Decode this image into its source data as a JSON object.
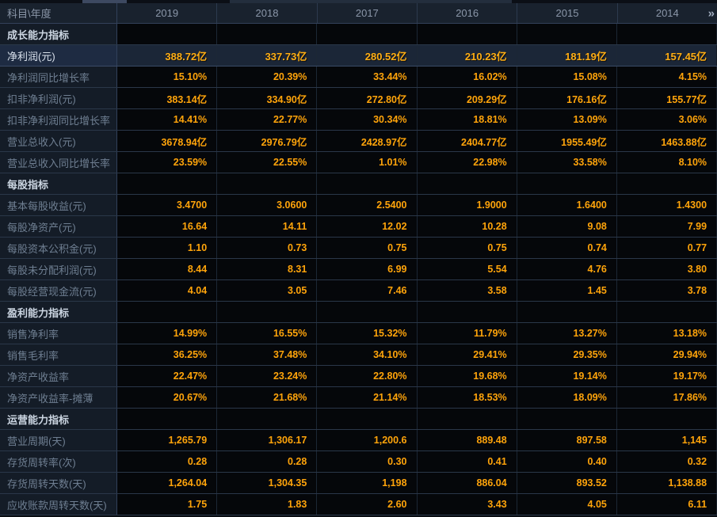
{
  "header": {
    "corner": "科目\\年度",
    "years": [
      "2019",
      "2018",
      "2017",
      "2016",
      "2015",
      "2014"
    ],
    "more_icon": "»"
  },
  "sections": [
    {
      "title": "成长能力指标",
      "rows": [
        {
          "label": "净利润(元)",
          "highlight": true,
          "values": [
            "388.72亿",
            "337.73亿",
            "280.52亿",
            "210.23亿",
            "181.19亿",
            "157.45亿"
          ]
        },
        {
          "label": "净利润同比增长率",
          "values": [
            "15.10%",
            "20.39%",
            "33.44%",
            "16.02%",
            "15.08%",
            "4.15%"
          ]
        },
        {
          "label": "扣非净利润(元)",
          "values": [
            "383.14亿",
            "334.90亿",
            "272.80亿",
            "209.29亿",
            "176.16亿",
            "155.77亿"
          ]
        },
        {
          "label": "扣非净利润同比增长率",
          "values": [
            "14.41%",
            "22.77%",
            "30.34%",
            "18.81%",
            "13.09%",
            "3.06%"
          ]
        },
        {
          "label": "营业总收入(元)",
          "values": [
            "3678.94亿",
            "2976.79亿",
            "2428.97亿",
            "2404.77亿",
            "1955.49亿",
            "1463.88亿"
          ]
        },
        {
          "label": "营业总收入同比增长率",
          "values": [
            "23.59%",
            "22.55%",
            "1.01%",
            "22.98%",
            "33.58%",
            "8.10%"
          ]
        }
      ]
    },
    {
      "title": "每股指标",
      "rows": [
        {
          "label": "基本每股收益(元)",
          "values": [
            "3.4700",
            "3.0600",
            "2.5400",
            "1.9000",
            "1.6400",
            "1.4300"
          ]
        },
        {
          "label": "每股净资产(元)",
          "values": [
            "16.64",
            "14.11",
            "12.02",
            "10.28",
            "9.08",
            "7.99"
          ]
        },
        {
          "label": "每股资本公积金(元)",
          "values": [
            "1.10",
            "0.73",
            "0.75",
            "0.75",
            "0.74",
            "0.77"
          ]
        },
        {
          "label": "每股未分配利润(元)",
          "values": [
            "8.44",
            "8.31",
            "6.99",
            "5.54",
            "4.76",
            "3.80"
          ]
        },
        {
          "label": "每股经营现金流(元)",
          "values": [
            "4.04",
            "3.05",
            "7.46",
            "3.58",
            "1.45",
            "3.78"
          ]
        }
      ]
    },
    {
      "title": "盈利能力指标",
      "rows": [
        {
          "label": "销售净利率",
          "values": [
            "14.99%",
            "16.55%",
            "15.32%",
            "11.79%",
            "13.27%",
            "13.18%"
          ]
        },
        {
          "label": "销售毛利率",
          "values": [
            "36.25%",
            "37.48%",
            "34.10%",
            "29.41%",
            "29.35%",
            "29.94%"
          ]
        },
        {
          "label": "净资产收益率",
          "values": [
            "22.47%",
            "23.24%",
            "22.80%",
            "19.68%",
            "19.14%",
            "19.17%"
          ]
        },
        {
          "label": "净资产收益率-摊薄",
          "values": [
            "20.67%",
            "21.68%",
            "21.14%",
            "18.53%",
            "18.09%",
            "17.86%"
          ]
        }
      ]
    },
    {
      "title": "运营能力指标",
      "rows": [
        {
          "label": "营业周期(天)",
          "values": [
            "1,265.79",
            "1,306.17",
            "1,200.6",
            "889.48",
            "897.58",
            "1,145"
          ]
        },
        {
          "label": "存货周转率(次)",
          "values": [
            "0.28",
            "0.28",
            "0.30",
            "0.41",
            "0.40",
            "0.32"
          ]
        },
        {
          "label": "存货周转天数(天)",
          "values": [
            "1,264.04",
            "1,304.35",
            "1,198",
            "886.04",
            "893.52",
            "1,138.88"
          ]
        },
        {
          "label": "应收账款周转天数(天)",
          "values": [
            "1.75",
            "1.83",
            "2.60",
            "3.43",
            "4.05",
            "6.11"
          ]
        }
      ]
    }
  ],
  "colors": {
    "value_orange": "#ffa40a",
    "highlight_row_bg": "#1b2637",
    "label_column_bg": "#141c27",
    "header_bg": "#19222e",
    "grid_line": "#2a3749"
  }
}
